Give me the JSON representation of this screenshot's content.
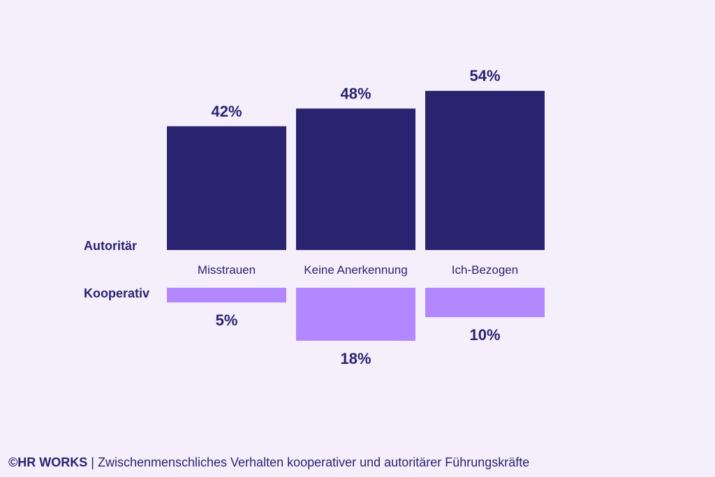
{
  "chart_data": {
    "type": "bar",
    "categories": [
      "Misstrauen",
      "Keine Anerkennung",
      "Ich-Bezogen"
    ],
    "series": [
      {
        "name": "Autoritär",
        "values": [
          42,
          48,
          54
        ],
        "labels": [
          "42%",
          "48%",
          "54%"
        ],
        "color": "#2a2470"
      },
      {
        "name": "Kooperativ",
        "values": [
          5,
          18,
          10
        ],
        "labels": [
          "5%",
          "18%",
          "10%"
        ],
        "color": "#b388ff"
      }
    ],
    "title": "",
    "xlabel": "",
    "ylabel": "",
    "grid": false
  },
  "footer": {
    "brand": "©HR WORKS",
    "separator": " | ",
    "caption": "Zwischenmenschliches Verhalten kooperativer und autoritärer Führungskräfte"
  },
  "colors": {
    "background": "#f5eefb",
    "text": "#2a2470"
  }
}
